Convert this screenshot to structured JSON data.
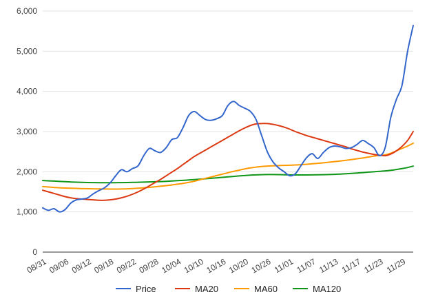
{
  "chart_data": {
    "type": "line",
    "title": "",
    "xlabel": "",
    "ylabel": "",
    "ylim": [
      0,
      6000
    ],
    "y_ticks": [
      "0",
      "1,000",
      "2,000",
      "3,000",
      "4,000",
      "5,000",
      "6,000"
    ],
    "y_tick_values": [
      0,
      1000,
      2000,
      3000,
      4000,
      5000,
      6000
    ],
    "x_tick_labels": [
      "08/31",
      "09/06",
      "09/12",
      "09/18",
      "09/22",
      "09/28",
      "10/04",
      "10/10",
      "10/16",
      "10/20",
      "10/26",
      "11/01",
      "11/07",
      "11/13",
      "11/17",
      "11/23",
      "11/29"
    ],
    "x_tick_index": [
      0,
      4,
      8,
      12,
      16,
      20,
      24,
      28,
      32,
      36,
      40,
      44,
      48,
      52,
      56,
      60,
      64
    ],
    "grid": true,
    "legend_position": "bottom",
    "series": [
      {
        "name": "Price",
        "color": "#3366cc",
        "values": [
          1100,
          1040,
          1080,
          1000,
          1060,
          1220,
          1300,
          1320,
          1350,
          1450,
          1530,
          1600,
          1720,
          1900,
          2050,
          2000,
          2080,
          2150,
          2400,
          2580,
          2520,
          2480,
          2600,
          2800,
          2850,
          3100,
          3400,
          3500,
          3400,
          3300,
          3280,
          3320,
          3400,
          3650,
          3750,
          3650,
          3580,
          3500,
          3300,
          2900,
          2500,
          2250,
          2100,
          2000,
          1900,
          1950,
          2150,
          2350,
          2450,
          2330,
          2480,
          2600,
          2640,
          2620,
          2580,
          2600,
          2680,
          2780,
          2700,
          2600,
          2400,
          2600,
          3350,
          3800,
          4150,
          5000,
          5640
        ]
      },
      {
        "name": "MA20",
        "color": "#dc3912",
        "values": [
          1540,
          1500,
          1460,
          1420,
          1380,
          1350,
          1330,
          1320,
          1310,
          1300,
          1290,
          1290,
          1300,
          1320,
          1350,
          1390,
          1440,
          1500,
          1570,
          1650,
          1730,
          1810,
          1900,
          1990,
          2080,
          2180,
          2280,
          2380,
          2460,
          2540,
          2620,
          2700,
          2780,
          2860,
          2940,
          3020,
          3090,
          3150,
          3190,
          3200,
          3200,
          3180,
          3150,
          3110,
          3060,
          3000,
          2950,
          2900,
          2860,
          2820,
          2780,
          2740,
          2700,
          2660,
          2620,
          2570,
          2530,
          2490,
          2460,
          2430,
          2410,
          2400,
          2440,
          2520,
          2630,
          2780,
          3000
        ]
      },
      {
        "name": "MA60",
        "color": "#ff9900",
        "values": [
          1630,
          1620,
          1610,
          1600,
          1595,
          1590,
          1585,
          1580,
          1578,
          1575,
          1572,
          1570,
          1568,
          1568,
          1570,
          1575,
          1582,
          1590,
          1600,
          1612,
          1625,
          1640,
          1655,
          1672,
          1690,
          1710,
          1735,
          1765,
          1800,
          1835,
          1870,
          1905,
          1940,
          1975,
          2010,
          2040,
          2070,
          2095,
          2115,
          2130,
          2140,
          2148,
          2154,
          2158,
          2162,
          2168,
          2176,
          2186,
          2198,
          2210,
          2223,
          2237,
          2252,
          2268,
          2285,
          2303,
          2322,
          2342,
          2365,
          2390,
          2405,
          2420,
          2460,
          2520,
          2580,
          2640,
          2710
        ]
      },
      {
        "name": "MA120",
        "color": "#109618",
        "values": [
          1780,
          1775,
          1768,
          1760,
          1752,
          1745,
          1740,
          1735,
          1732,
          1730,
          1728,
          1727,
          1727,
          1728,
          1730,
          1732,
          1735,
          1738,
          1742,
          1746,
          1750,
          1755,
          1762,
          1770,
          1778,
          1786,
          1795,
          1805,
          1815,
          1825,
          1836,
          1848,
          1860,
          1872,
          1884,
          1896,
          1906,
          1915,
          1922,
          1927,
          1930,
          1930,
          1928,
          1925,
          1922,
          1920,
          1920,
          1921,
          1922,
          1924,
          1927,
          1931,
          1936,
          1942,
          1950,
          1958,
          1968,
          1978,
          1990,
          2000,
          2010,
          2020,
          2035,
          2055,
          2078,
          2105,
          2140
        ]
      }
    ]
  }
}
